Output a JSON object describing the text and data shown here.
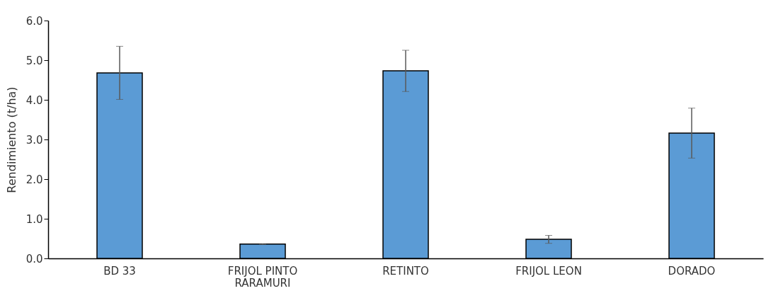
{
  "chart_data": {
    "type": "bar",
    "ylabel": "Rendimiento (t/ha)",
    "categories": [
      "BD 33",
      "FRIJOL PINTO RARAMURI",
      "RETINTO",
      "FRIJOL LEON",
      "DORADO"
    ],
    "values": [
      4.68,
      0.36,
      4.73,
      0.48,
      3.16
    ],
    "errors": [
      0.67,
      0.01,
      0.52,
      0.1,
      0.63
    ],
    "color": "#5b9bd5",
    "ylim": [
      0,
      6
    ],
    "yticks": [
      {
        "value": 0,
        "label": "0.0"
      },
      {
        "value": 1,
        "label": "1.0"
      },
      {
        "value": 2,
        "label": "2.0"
      },
      {
        "value": 3,
        "label": "3.0"
      },
      {
        "value": 4,
        "label": "4.0"
      },
      {
        "value": 5,
        "label": "5.0"
      },
      {
        "value": 6,
        "label": "6.0"
      }
    ],
    "grid": false
  }
}
